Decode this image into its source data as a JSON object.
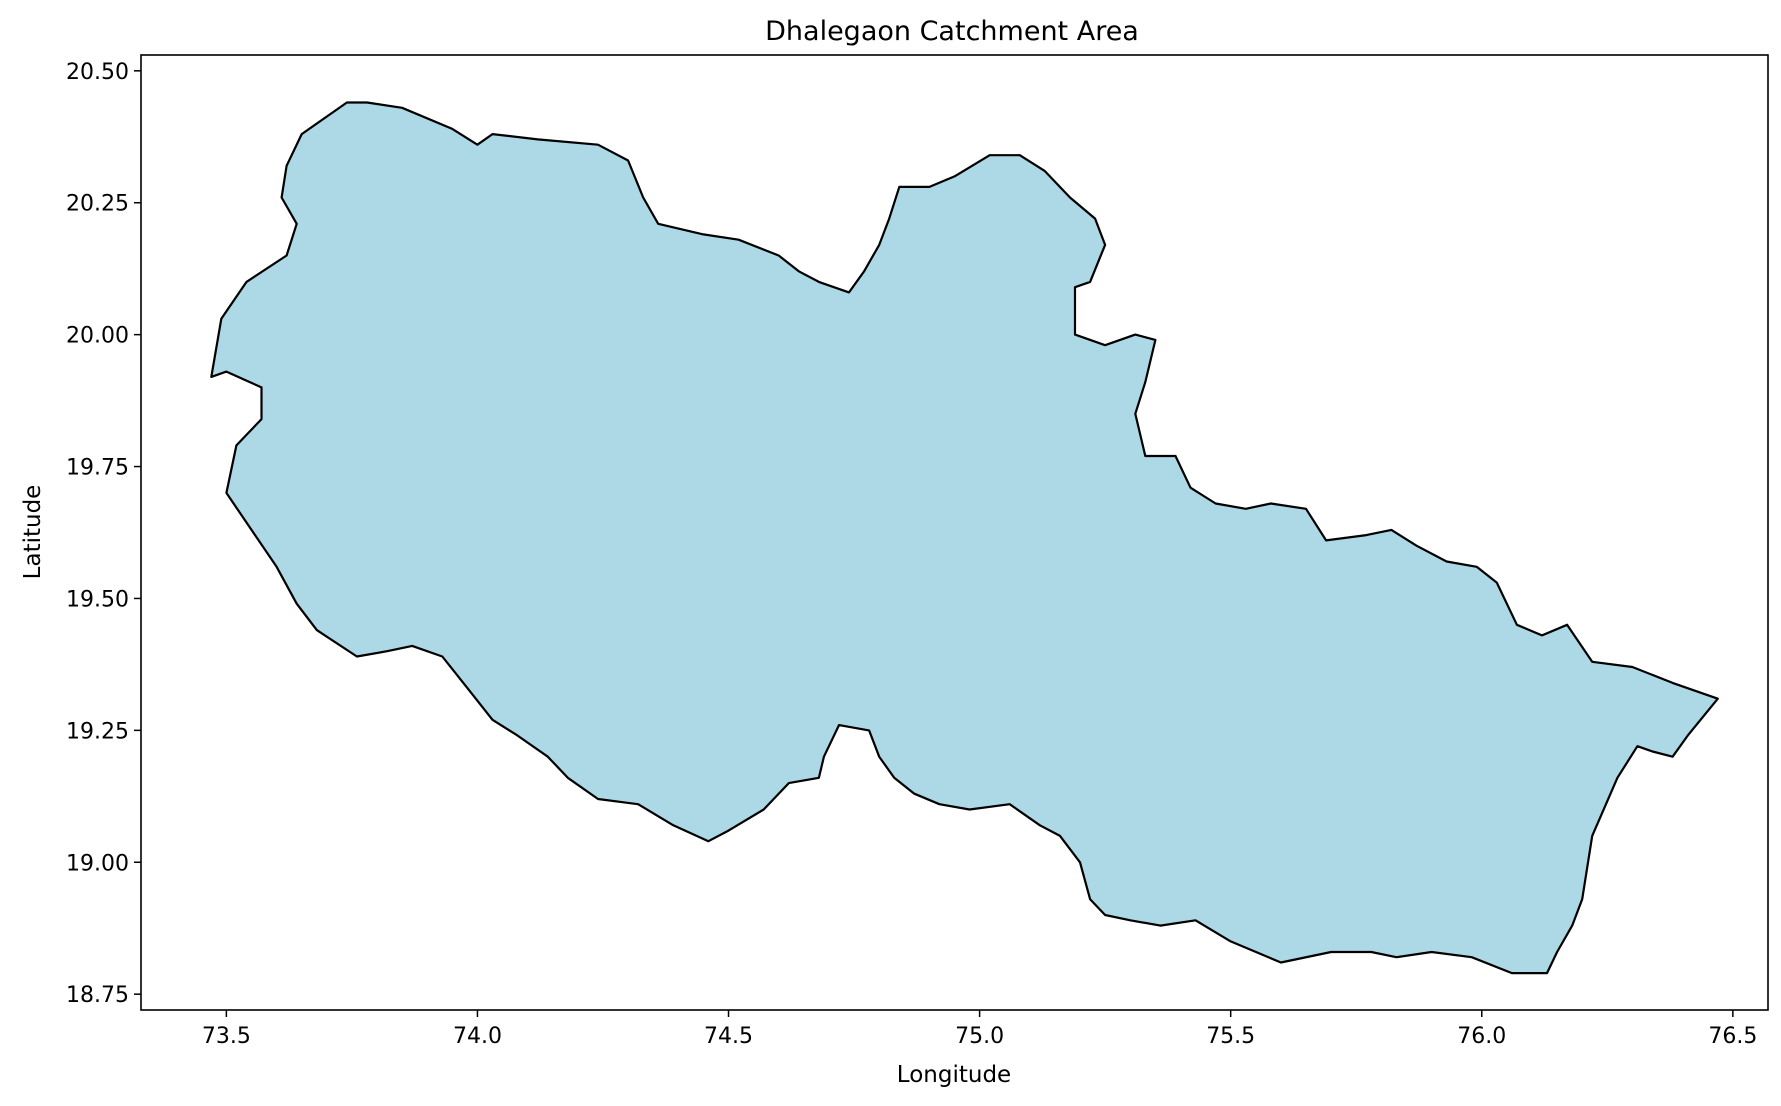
{
  "chart_data": {
    "type": "area",
    "title": "Dhalegaon Catchment Area",
    "xlabel": "Longitude",
    "ylabel": "Latitude",
    "xlim": [
      73.33,
      76.57
    ],
    "ylim": [
      18.72,
      20.53
    ],
    "xticks": [
      "73.5",
      "74.0",
      "74.5",
      "75.0",
      "75.5",
      "76.0",
      "76.5"
    ],
    "yticks": [
      "18.75",
      "19.00",
      "19.25",
      "19.50",
      "19.75",
      "20.00",
      "20.25",
      "20.50"
    ],
    "grid": false,
    "legend": "none",
    "fill_color": "#add8e6",
    "edge_color": "#000000",
    "boundary": [
      [
        73.74,
        20.44
      ],
      [
        73.78,
        20.44
      ],
      [
        73.85,
        20.43
      ],
      [
        73.95,
        20.39
      ],
      [
        74.0,
        20.36
      ],
      [
        74.03,
        20.38
      ],
      [
        74.12,
        20.37
      ],
      [
        74.24,
        20.36
      ],
      [
        74.3,
        20.33
      ],
      [
        74.33,
        20.26
      ],
      [
        74.36,
        20.21
      ],
      [
        74.45,
        20.19
      ],
      [
        74.52,
        20.18
      ],
      [
        74.6,
        20.15
      ],
      [
        74.64,
        20.12
      ],
      [
        74.68,
        20.1
      ],
      [
        74.74,
        20.08
      ],
      [
        74.77,
        20.12
      ],
      [
        74.8,
        20.17
      ],
      [
        74.82,
        20.22
      ],
      [
        74.84,
        20.28
      ],
      [
        74.9,
        20.28
      ],
      [
        74.95,
        20.3
      ],
      [
        75.02,
        20.34
      ],
      [
        75.08,
        20.34
      ],
      [
        75.13,
        20.31
      ],
      [
        75.18,
        20.26
      ],
      [
        75.23,
        20.22
      ],
      [
        75.25,
        20.17
      ],
      [
        75.22,
        20.1
      ],
      [
        75.19,
        20.09
      ],
      [
        75.19,
        20.0
      ],
      [
        75.25,
        19.98
      ],
      [
        75.31,
        20.0
      ],
      [
        75.35,
        19.99
      ],
      [
        75.33,
        19.91
      ],
      [
        75.31,
        19.85
      ],
      [
        75.33,
        19.77
      ],
      [
        75.39,
        19.77
      ],
      [
        75.42,
        19.71
      ],
      [
        75.47,
        19.68
      ],
      [
        75.53,
        19.67
      ],
      [
        75.58,
        19.68
      ],
      [
        75.65,
        19.67
      ],
      [
        75.69,
        19.61
      ],
      [
        75.77,
        19.62
      ],
      [
        75.82,
        19.63
      ],
      [
        75.87,
        19.6
      ],
      [
        75.93,
        19.57
      ],
      [
        75.99,
        19.56
      ],
      [
        76.03,
        19.53
      ],
      [
        76.07,
        19.45
      ],
      [
        76.12,
        19.43
      ],
      [
        76.17,
        19.45
      ],
      [
        76.22,
        19.38
      ],
      [
        76.3,
        19.37
      ],
      [
        76.38,
        19.34
      ],
      [
        76.47,
        19.31
      ],
      [
        76.41,
        19.24
      ],
      [
        76.38,
        19.2
      ],
      [
        76.34,
        19.21
      ],
      [
        76.31,
        19.22
      ],
      [
        76.27,
        19.16
      ],
      [
        76.22,
        19.05
      ],
      [
        76.2,
        18.93
      ],
      [
        76.18,
        18.88
      ],
      [
        76.15,
        18.83
      ],
      [
        76.13,
        18.79
      ],
      [
        76.06,
        18.79
      ],
      [
        75.98,
        18.82
      ],
      [
        75.9,
        18.83
      ],
      [
        75.83,
        18.82
      ],
      [
        75.78,
        18.83
      ],
      [
        75.7,
        18.83
      ],
      [
        75.6,
        18.81
      ],
      [
        75.5,
        18.85
      ],
      [
        75.43,
        18.89
      ],
      [
        75.36,
        18.88
      ],
      [
        75.3,
        18.89
      ],
      [
        75.25,
        18.9
      ],
      [
        75.22,
        18.93
      ],
      [
        75.2,
        19.0
      ],
      [
        75.16,
        19.05
      ],
      [
        75.12,
        19.07
      ],
      [
        75.06,
        19.11
      ],
      [
        74.98,
        19.1
      ],
      [
        74.92,
        19.11
      ],
      [
        74.87,
        19.13
      ],
      [
        74.83,
        19.16
      ],
      [
        74.8,
        19.2
      ],
      [
        74.78,
        19.25
      ],
      [
        74.72,
        19.26
      ],
      [
        74.69,
        19.2
      ],
      [
        74.68,
        19.16
      ],
      [
        74.62,
        19.15
      ],
      [
        74.57,
        19.1
      ],
      [
        74.5,
        19.06
      ],
      [
        74.46,
        19.04
      ],
      [
        74.39,
        19.07
      ],
      [
        74.32,
        19.11
      ],
      [
        74.24,
        19.12
      ],
      [
        74.18,
        19.16
      ],
      [
        74.14,
        19.2
      ],
      [
        74.08,
        19.24
      ],
      [
        74.03,
        19.27
      ],
      [
        73.98,
        19.33
      ],
      [
        73.93,
        19.39
      ],
      [
        73.87,
        19.41
      ],
      [
        73.82,
        19.4
      ],
      [
        73.76,
        19.39
      ],
      [
        73.68,
        19.44
      ],
      [
        73.64,
        19.49
      ],
      [
        73.6,
        19.56
      ],
      [
        73.55,
        19.63
      ],
      [
        73.5,
        19.7
      ],
      [
        73.52,
        19.79
      ],
      [
        73.57,
        19.84
      ],
      [
        73.57,
        19.9
      ],
      [
        73.5,
        19.93
      ],
      [
        73.47,
        19.92
      ],
      [
        73.49,
        20.03
      ],
      [
        73.54,
        20.1
      ],
      [
        73.62,
        20.15
      ],
      [
        73.64,
        20.21
      ],
      [
        73.61,
        20.26
      ],
      [
        73.62,
        20.32
      ],
      [
        73.65,
        20.38
      ]
    ]
  }
}
